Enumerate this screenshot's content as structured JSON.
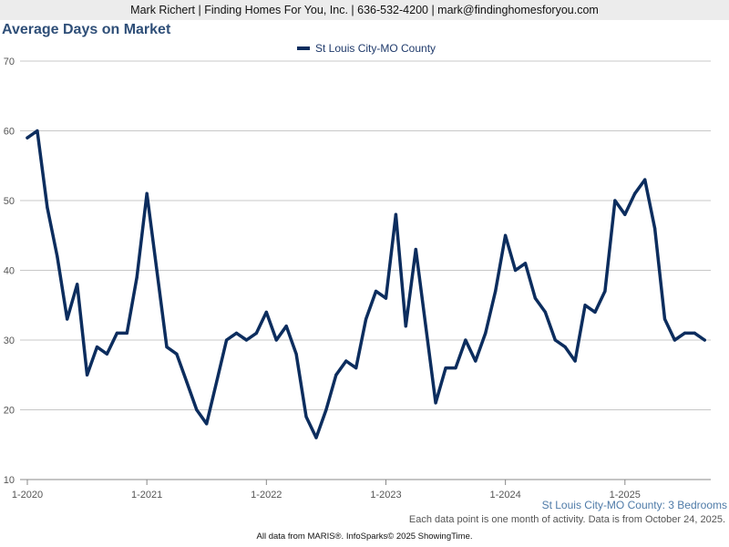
{
  "header": {
    "text": "Mark Richert | Finding Homes For You, Inc. | 636-532-4200 | mark@findinghomesforyou.com"
  },
  "chart_data": {
    "type": "line",
    "title": "Average Days on Market",
    "subtitle": "St Louis City-MO County: 3 Bedrooms",
    "legend": {
      "placement": "top-center"
    },
    "grid": true,
    "ylim": [
      10,
      70
    ],
    "yticks": [
      10,
      20,
      30,
      40,
      50,
      60,
      70
    ],
    "xticks": [
      {
        "label": "1-2020",
        "index": 0
      },
      {
        "label": "1-2021",
        "index": 12
      },
      {
        "label": "1-2022",
        "index": 24
      },
      {
        "label": "1-2023",
        "index": 36
      },
      {
        "label": "1-2024",
        "index": 48
      },
      {
        "label": "1-2025",
        "index": 60
      }
    ],
    "x_start": "1-2020",
    "x_end": "9-2025",
    "colors": {
      "series": "#0c2d5e",
      "grid": "#c8c8c8"
    },
    "series": [
      {
        "name": "St Louis City-MO County",
        "values": [
          59,
          60,
          49,
          42,
          33,
          38,
          25,
          29,
          28,
          31,
          31,
          39,
          51,
          40,
          29,
          28,
          24,
          20,
          18,
          24,
          30,
          31,
          30,
          31,
          34,
          30,
          32,
          28,
          19,
          16,
          20,
          25,
          27,
          26,
          33,
          37,
          36,
          48,
          32,
          43,
          32,
          21,
          26,
          26,
          30,
          27,
          31,
          37,
          45,
          40,
          41,
          36,
          34,
          30,
          29,
          27,
          35,
          34,
          37,
          50,
          48,
          51,
          53,
          46,
          33,
          30,
          31,
          31,
          30
        ]
      }
    ]
  },
  "note": "Each data point is one month of activity. Data is from October 24, 2025.",
  "footer": "All data from MARIS®. InfoSparks© 2025 ShowingTime."
}
